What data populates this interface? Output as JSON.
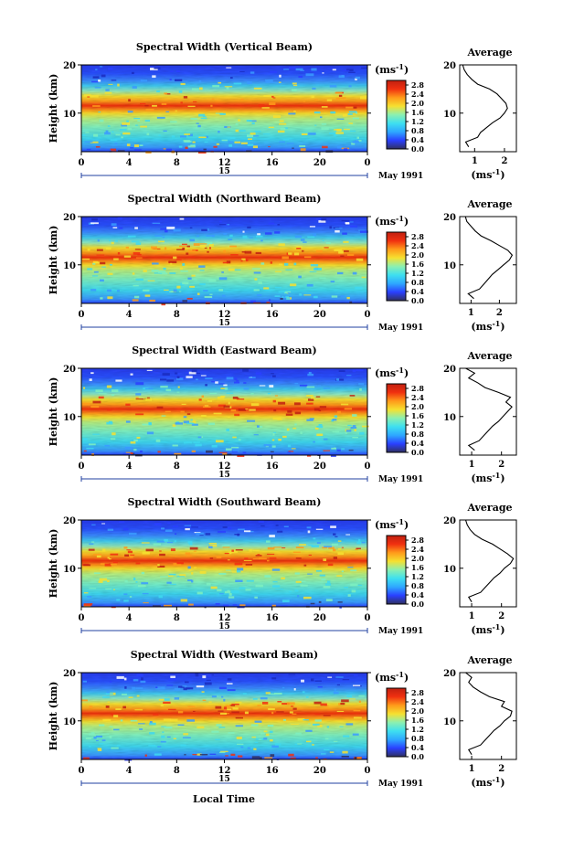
{
  "chart_data": {
    "type": "heatmap",
    "colorbar": {
      "unit_label": "(ms",
      "unit_exp": "-1",
      "unit_close": ")",
      "ticks": [
        "0.0",
        "0.4",
        "0.8",
        "1.2",
        "1.6",
        "2.0",
        "2.4",
        "2.8"
      ],
      "range": [
        0,
        3.0
      ],
      "colors": [
        "#303060",
        "#2a40ff",
        "#2ea8ff",
        "#3ee0f0",
        "#8cf0b0",
        "#f6e030",
        "#ff9a1a",
        "#f03010",
        "#c02010"
      ]
    },
    "x_ticks": [
      "0",
      "4",
      "8",
      "12",
      "16",
      "20",
      "0"
    ],
    "x_range": [
      0,
      24
    ],
    "date_day": "15",
    "date_label": "May 1991",
    "xlabel": "Local Time",
    "ylabel": "Height (km)",
    "y_ticks": [
      "20",
      "10"
    ],
    "y_range": [
      2,
      20
    ],
    "avg_title": "Average",
    "avg_xunit": "(ms",
    "avg_xunit_exp": "-1",
    "avg_xunit_close": ")",
    "panels": [
      {
        "title": "Spectral Width (Vertical Beam)",
        "avg_xticks": [
          "1",
          "2"
        ],
        "avg_xlim": [
          0.5,
          2.4
        ],
        "avg_profile": {
          "height": [
            3,
            4,
            5,
            6,
            7,
            8,
            9,
            10,
            11,
            12,
            13,
            14,
            15,
            16,
            17,
            18,
            19,
            20
          ],
          "value": [
            0.8,
            0.7,
            1.1,
            1.2,
            1.4,
            1.6,
            1.85,
            2.0,
            2.1,
            2.05,
            1.9,
            1.75,
            1.5,
            1.1,
            0.9,
            0.75,
            0.65,
            0.6
          ]
        }
      },
      {
        "title": "Spectral Width (Northward Beam)",
        "avg_xticks": [
          "1",
          "2"
        ],
        "avg_xlim": [
          0.6,
          2.6
        ],
        "avg_profile": {
          "height": [
            3,
            4,
            5,
            6,
            7,
            8,
            9,
            10,
            11,
            12,
            13,
            14,
            15,
            16,
            17,
            18,
            19,
            20
          ],
          "value": [
            1.1,
            0.9,
            1.3,
            1.45,
            1.6,
            1.75,
            1.95,
            2.15,
            2.35,
            2.45,
            2.3,
            2.0,
            1.7,
            1.35,
            1.15,
            1.0,
            0.85,
            0.8
          ]
        }
      },
      {
        "title": "Spectral Width (Eastward Beam)",
        "avg_xticks": [
          "1",
          "2"
        ],
        "avg_xlim": [
          0.6,
          2.5
        ],
        "avg_profile": {
          "height": [
            3,
            4,
            5,
            6,
            7,
            8,
            9,
            10,
            11,
            12,
            13,
            14,
            15,
            16,
            17,
            18,
            19,
            20
          ],
          "value": [
            1.1,
            0.9,
            1.25,
            1.4,
            1.55,
            1.7,
            1.9,
            2.05,
            2.2,
            2.35,
            2.15,
            2.3,
            1.9,
            1.45,
            1.2,
            0.9,
            1.1,
            0.8
          ]
        }
      },
      {
        "title": "Spectral Width (Southward Beam)",
        "avg_xticks": [
          "1",
          "2"
        ],
        "avg_xlim": [
          0.6,
          2.5
        ],
        "avg_profile": {
          "height": [
            3,
            4,
            5,
            6,
            7,
            8,
            9,
            10,
            11,
            12,
            13,
            14,
            15,
            16,
            17,
            18,
            19,
            20
          ],
          "value": [
            1.0,
            0.9,
            1.3,
            1.45,
            1.6,
            1.75,
            1.95,
            2.1,
            2.3,
            2.4,
            2.2,
            1.95,
            1.7,
            1.35,
            1.1,
            0.95,
            0.85,
            0.8
          ]
        }
      },
      {
        "title": "Spectral Width (Westward Beam)",
        "avg_xticks": [
          "1",
          "2"
        ],
        "avg_xlim": [
          0.6,
          2.5
        ],
        "avg_profile": {
          "height": [
            3,
            4,
            5,
            6,
            7,
            8,
            9,
            10,
            11,
            12,
            13,
            14,
            15,
            16,
            17,
            18,
            19,
            20
          ],
          "value": [
            1.0,
            0.9,
            1.3,
            1.45,
            1.6,
            1.75,
            1.95,
            2.1,
            2.3,
            2.35,
            2.0,
            2.1,
            1.6,
            1.3,
            1.05,
            0.9,
            1.0,
            0.8
          ]
        }
      }
    ]
  }
}
